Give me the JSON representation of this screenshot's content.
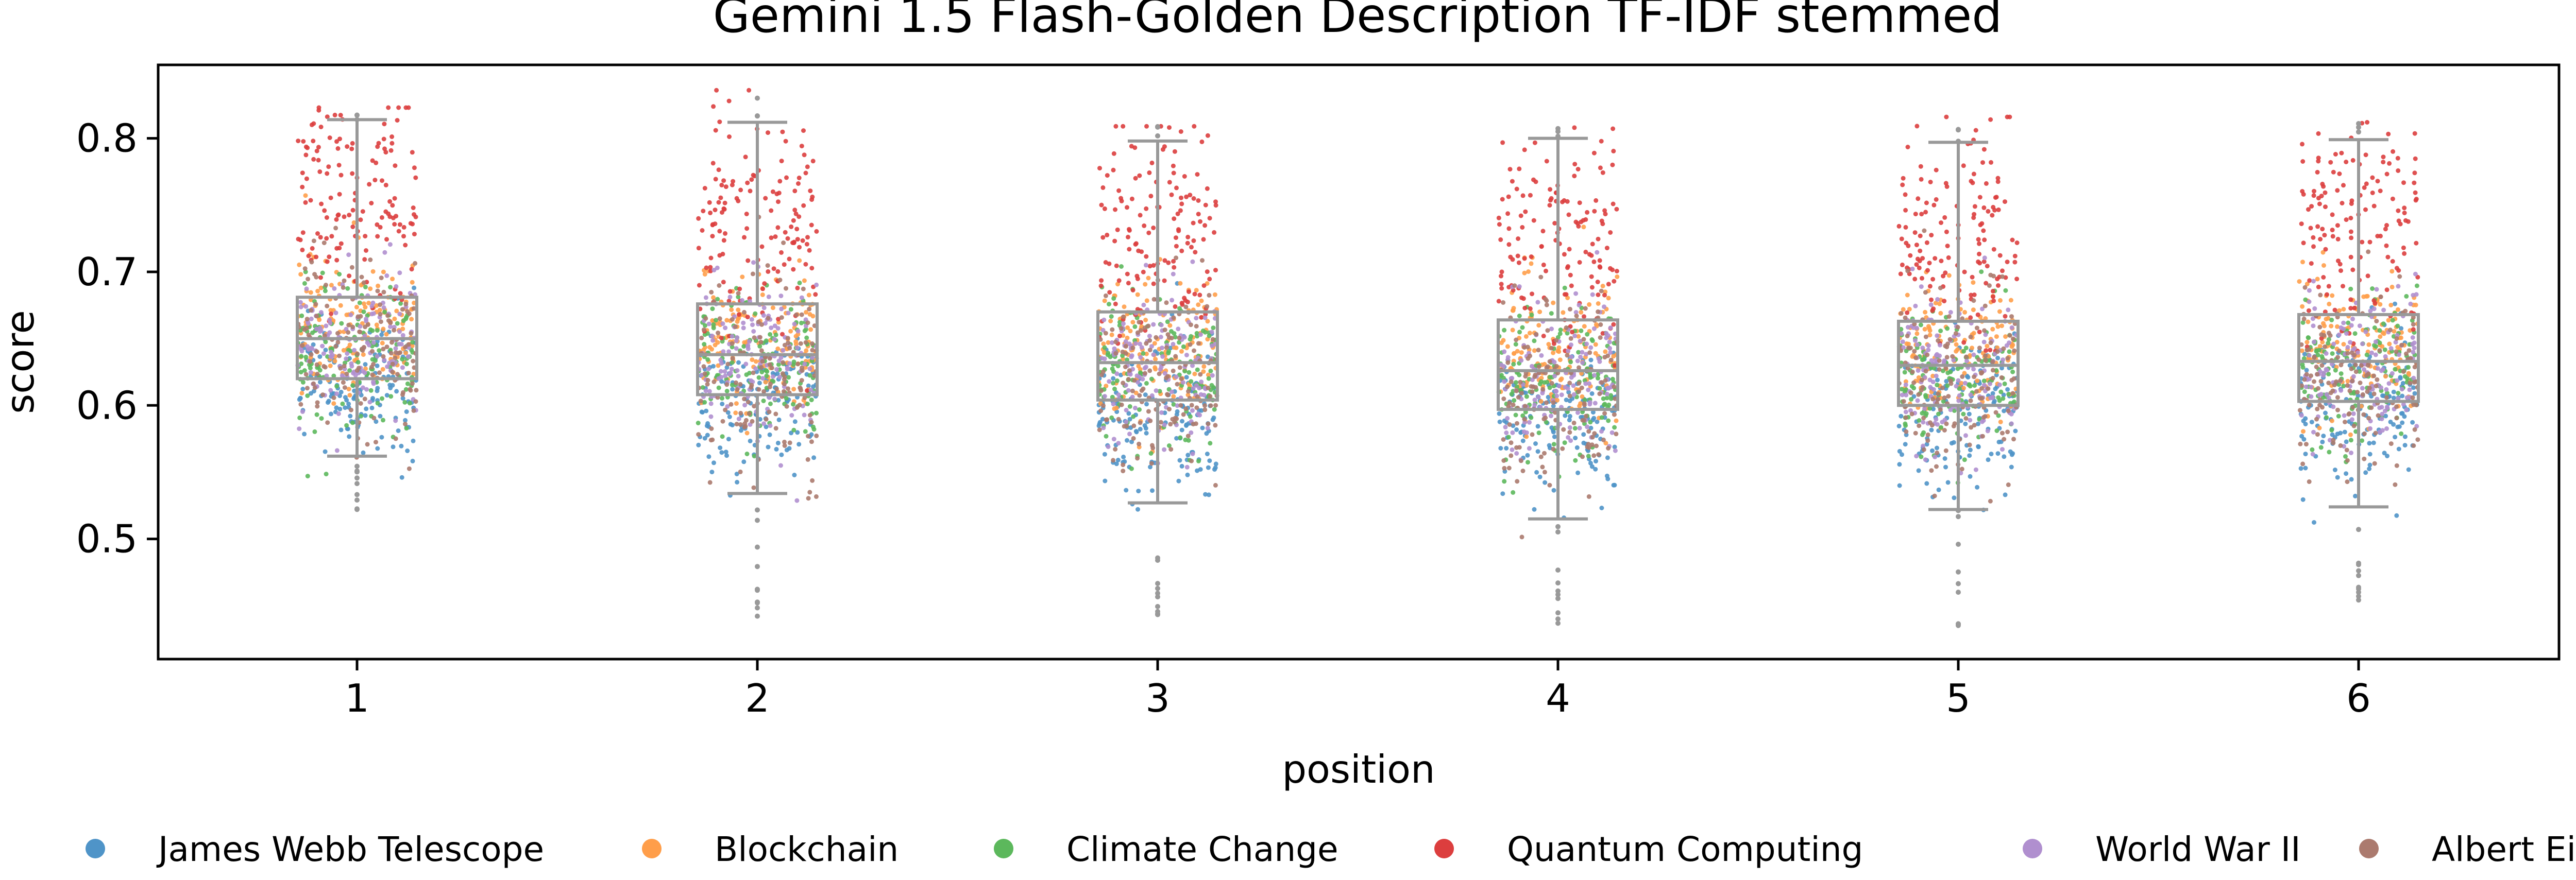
{
  "chart_data": {
    "type": "box",
    "title": "Gemini 1.5 Flash-Golden Description TF-IDF stemmed",
    "xlabel": "position",
    "ylabel": "score",
    "categories": [
      "1",
      "2",
      "3",
      "4",
      "5",
      "6"
    ],
    "ylim": [
      0.41,
      0.855
    ],
    "yticks": [
      "0.5",
      "0.6",
      "0.7",
      "0.8"
    ],
    "grid": false,
    "legend_position": "bottom",
    "box_color": "#999999",
    "boxes": [
      {
        "position": "1",
        "whislo": 0.562,
        "q1": 0.62,
        "median": 0.65,
        "q3": 0.681,
        "whishi": 0.814,
        "min": 0.522,
        "max": 0.823
      },
      {
        "position": "2",
        "whislo": 0.534,
        "q1": 0.608,
        "median": 0.638,
        "q3": 0.676,
        "whishi": 0.812,
        "min": 0.442,
        "max": 0.836
      },
      {
        "position": "3",
        "whislo": 0.527,
        "q1": 0.604,
        "median": 0.632,
        "q3": 0.67,
        "whishi": 0.798,
        "min": 0.427,
        "max": 0.809
      },
      {
        "position": "4",
        "whislo": 0.515,
        "q1": 0.597,
        "median": 0.626,
        "q3": 0.664,
        "whishi": 0.8,
        "min": 0.436,
        "max": 0.808
      },
      {
        "position": "5",
        "whislo": 0.522,
        "q1": 0.6,
        "median": 0.63,
        "q3": 0.663,
        "whishi": 0.797,
        "min": 0.43,
        "max": 0.816
      },
      {
        "position": "6",
        "whislo": 0.524,
        "q1": 0.603,
        "median": 0.633,
        "q3": 0.668,
        "whishi": 0.799,
        "min": 0.452,
        "max": 0.812
      }
    ],
    "series": [
      {
        "name": "James Webb Telescope",
        "color": "#4f94c8",
        "center": 0.6,
        "spread": 0.028
      },
      {
        "name": "Blockchain",
        "color": "#ff9e4a",
        "center": 0.648,
        "spread": 0.025
      },
      {
        "name": "Climate Change",
        "color": "#5cb85c",
        "center": 0.628,
        "spread": 0.028
      },
      {
        "name": "Quantum Computing",
        "color": "#dc3e3e",
        "center": 0.735,
        "spread": 0.042
      },
      {
        "name": "World War II",
        "color": "#b08fcf",
        "center": 0.632,
        "spread": 0.028
      },
      {
        "name": "Albert Einstein",
        "color": "#ab7a6e",
        "center": 0.622,
        "spread": 0.036
      }
    ]
  }
}
